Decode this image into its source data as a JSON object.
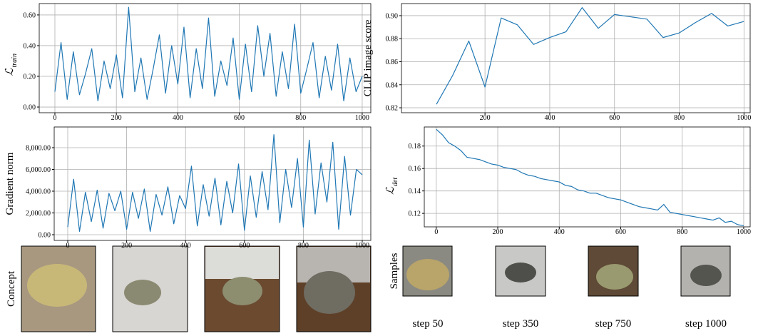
{
  "chart_data": [
    {
      "type": "line",
      "y_label": "ℒ",
      "y_label_subscript": "train",
      "color": "#1f77b4",
      "grid": true,
      "x": [
        0,
        20,
        40,
        60,
        80,
        100,
        120,
        140,
        160,
        180,
        200,
        220,
        240,
        260,
        280,
        300,
        320,
        340,
        360,
        380,
        400,
        420,
        440,
        460,
        480,
        500,
        520,
        540,
        560,
        580,
        600,
        620,
        640,
        660,
        680,
        700,
        720,
        740,
        760,
        780,
        800,
        820,
        840,
        860,
        880,
        900,
        920,
        940,
        960,
        980,
        1000
      ],
      "values": [
        0.1,
        0.42,
        0.05,
        0.36,
        0.08,
        0.22,
        0.38,
        0.04,
        0.3,
        0.12,
        0.34,
        0.06,
        0.65,
        0.1,
        0.32,
        0.05,
        0.25,
        0.47,
        0.09,
        0.4,
        0.15,
        0.52,
        0.06,
        0.38,
        0.12,
        0.58,
        0.07,
        0.3,
        0.14,
        0.45,
        0.05,
        0.41,
        0.1,
        0.53,
        0.2,
        0.48,
        0.07,
        0.36,
        0.12,
        0.54,
        0.09,
        0.25,
        0.42,
        0.06,
        0.33,
        0.11,
        0.41,
        0.04,
        0.32,
        0.1,
        0.2
      ],
      "xlim": [
        -51,
        1028
      ],
      "xticks": [
        0,
        200,
        400,
        600,
        800,
        1000
      ],
      "ylim": [
        -0.037,
        0.674
      ],
      "yticks": [
        {
          "value": 0,
          "label": "0.00"
        },
        {
          "value": 0.2,
          "label": "0.20"
        },
        {
          "value": 0.4,
          "label": "0.40"
        },
        {
          "value": 0.6,
          "label": "0.60"
        }
      ]
    },
    {
      "type": "line",
      "y_label": "Gradient norm",
      "color": "#1f77b4",
      "grid": true,
      "x": [
        0,
        20,
        40,
        60,
        80,
        100,
        120,
        140,
        160,
        180,
        200,
        220,
        240,
        260,
        280,
        300,
        320,
        340,
        360,
        380,
        400,
        420,
        440,
        460,
        480,
        500,
        520,
        540,
        560,
        580,
        600,
        620,
        640,
        660,
        680,
        700,
        720,
        740,
        760,
        780,
        800,
        820,
        840,
        860,
        880,
        900,
        920,
        940,
        960,
        980,
        1000
      ],
      "values": [
        700,
        5100,
        300,
        3900,
        1200,
        4100,
        600,
        3800,
        2200,
        4000,
        500,
        3900,
        1500,
        4200,
        300,
        3700,
        1800,
        4400,
        1000,
        3600,
        2400,
        6300,
        800,
        4600,
        1700,
        5200,
        900,
        4900,
        2000,
        6500,
        400,
        5400,
        1600,
        5800,
        2300,
        9200,
        1100,
        6000,
        2500,
        7000,
        700,
        8700,
        1900,
        6600,
        3000,
        8500,
        500,
        7200,
        1800,
        6000,
        5500
      ],
      "xlim": [
        -46,
        1029
      ],
      "xticks": [
        0,
        200,
        400,
        600,
        800,
        1000
      ],
      "ylim": [
        -525,
        9900
      ],
      "yticks": [
        {
          "value": 0,
          "label": "0.00"
        },
        {
          "value": 2000,
          "label": "2,000.00"
        },
        {
          "value": 4000,
          "label": "4,000.00"
        },
        {
          "value": 6000,
          "label": "6,000.00"
        },
        {
          "value": 8000,
          "label": "8,000.00"
        }
      ]
    },
    {
      "type": "line",
      "y_label": "CLIP image score",
      "color": "#1f77b4",
      "grid": true,
      "x": [
        50,
        100,
        150,
        200,
        250,
        300,
        350,
        400,
        450,
        500,
        550,
        600,
        650,
        700,
        750,
        800,
        850,
        900,
        950,
        1000
      ],
      "values": [
        0.823,
        0.848,
        0.878,
        0.838,
        0.898,
        0.892,
        0.875,
        0.881,
        0.886,
        0.907,
        0.889,
        0.901,
        0.899,
        0.897,
        0.881,
        0.885,
        0.894,
        0.902,
        0.891,
        0.895
      ],
      "xlim": [
        -58,
        1019
      ],
      "xticks": [
        200,
        400,
        600,
        800,
        1000
      ],
      "ylim": [
        0.8157,
        0.9105
      ],
      "yticks": [
        0.82,
        0.84,
        0.86,
        0.88,
        {
          "value": 0.9,
          "label": "0.90"
        }
      ]
    },
    {
      "type": "line",
      "y_label": "ℒ",
      "y_label_subscript": "det",
      "color": "#1f77b4",
      "grid": true,
      "x": [
        0,
        20,
        40,
        60,
        80,
        100,
        120,
        140,
        160,
        180,
        200,
        220,
        240,
        260,
        280,
        300,
        320,
        340,
        360,
        380,
        400,
        420,
        440,
        460,
        480,
        500,
        520,
        540,
        560,
        580,
        600,
        620,
        640,
        660,
        680,
        700,
        720,
        740,
        760,
        780,
        800,
        820,
        840,
        860,
        880,
        900,
        920,
        940,
        960,
        980,
        1000
      ],
      "values": [
        0.195,
        0.19,
        0.183,
        0.18,
        0.176,
        0.17,
        0.169,
        0.168,
        0.166,
        0.164,
        0.163,
        0.161,
        0.16,
        0.159,
        0.156,
        0.154,
        0.153,
        0.151,
        0.15,
        0.149,
        0.148,
        0.145,
        0.144,
        0.141,
        0.14,
        0.138,
        0.138,
        0.136,
        0.134,
        0.133,
        0.132,
        0.13,
        0.128,
        0.126,
        0.125,
        0.124,
        0.123,
        0.128,
        0.121,
        0.12,
        0.119,
        0.118,
        0.117,
        0.116,
        0.115,
        0.114,
        0.116,
        0.112,
        0.113,
        0.11,
        0.109
      ],
      "xlim": [
        -39,
        1021
      ],
      "xticks": [
        0,
        200,
        400,
        600,
        800,
        1000
      ],
      "ylim": [
        0.108,
        0.197
      ],
      "yticks": [
        0.12,
        0.14,
        0.16,
        0.18
      ]
    }
  ],
  "concept_row": {
    "label": "Concept"
  },
  "samples_row": {
    "label": "Samples",
    "captions": [
      "step 50",
      "step 350",
      "step 750",
      "step 1000"
    ]
  }
}
